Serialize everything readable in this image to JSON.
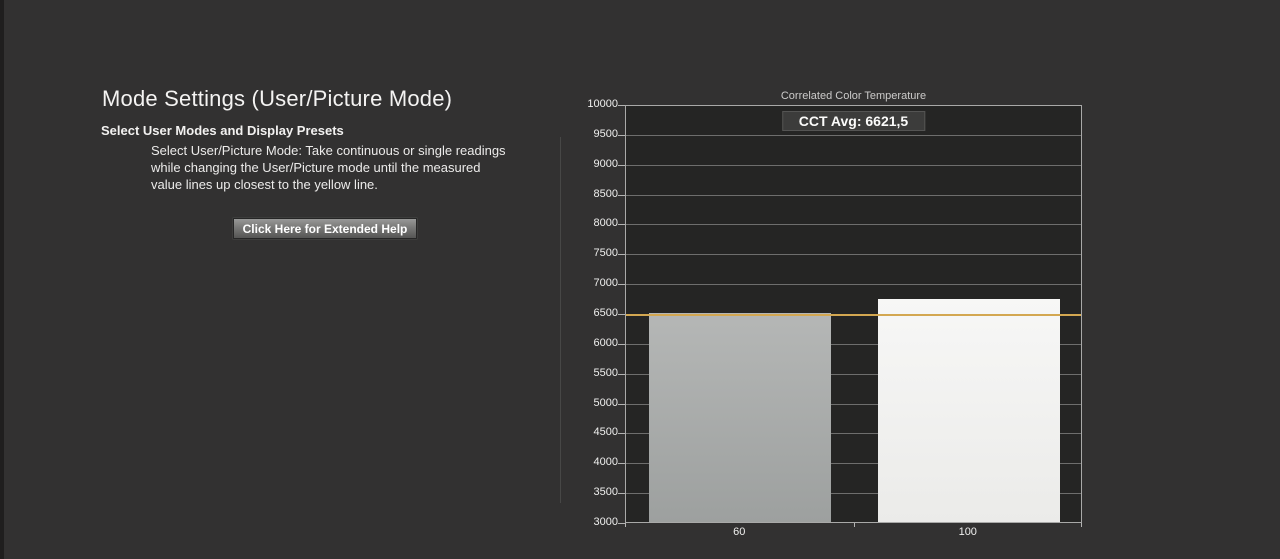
{
  "page": {
    "title": "Mode Settings (User/Picture Mode)",
    "subtitle": "Select User Modes and Display Presets",
    "instructions": "Select User/Picture Mode: Take continuous or single readings while changing the User/Picture mode until the measured value lines up closest to the yellow line.",
    "help_button_label": "Click Here for Extended Help"
  },
  "chart_data": {
    "type": "bar",
    "title": "Correlated Color Temperature",
    "avg_label": "CCT Avg: 6621,5",
    "avg_value": 6621.5,
    "categories": [
      "60",
      "100"
    ],
    "values": [
      6500,
      6743
    ],
    "ylim": [
      3000,
      10000
    ],
    "yticks": [
      3000,
      3500,
      4000,
      4500,
      5000,
      5500,
      6000,
      6500,
      7000,
      7500,
      8000,
      8500,
      9000,
      9500,
      10000
    ],
    "grid": true,
    "legend": false,
    "reference_line": {
      "value": 6500,
      "color": "#d3a751"
    },
    "bar_colors": [
      {
        "top": "#b5b7b6",
        "bottom": "#9da09f"
      },
      {
        "top": "#f7f7f6",
        "bottom": "#ebebe9"
      }
    ]
  },
  "colors": {
    "background": "#323131",
    "plot_background": "#252524",
    "plot_frame": "#a9a9a8",
    "gridline": "#6e6e6d",
    "accent_yellow": "#d3a751",
    "text": "#f0f0ef"
  }
}
